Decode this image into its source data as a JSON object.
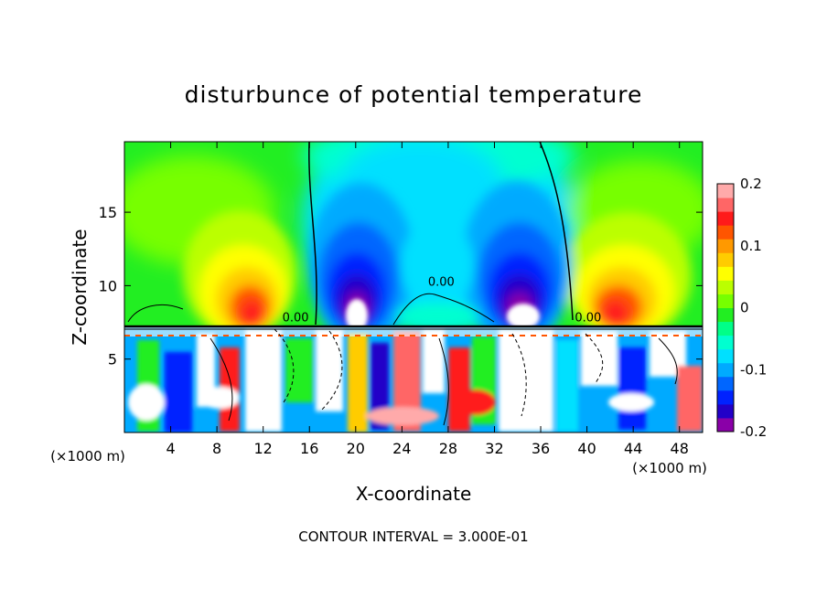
{
  "chart_data": {
    "type": "heatmap",
    "title": "disturbunce of potential temperature",
    "xlabel": "X-coordinate",
    "ylabel": "Z-coordinate",
    "x_unit_note": "(×1000 m)",
    "y_unit_note": "(×1000 m)",
    "footer": "CONTOUR INTERVAL = 3.000E-01",
    "xlim": [
      0,
      50
    ],
    "ylim": [
      0,
      19.8
    ],
    "x_ticks": [
      4,
      8,
      12,
      16,
      20,
      24,
      28,
      32,
      36,
      40,
      44,
      48
    ],
    "y_ticks": [
      5,
      10,
      15
    ],
    "colorbar": {
      "range": [
        -0.2,
        0.2
      ],
      "tick_labels": [
        "0.2",
        "0.1",
        "0",
        "-0.1",
        "-0.2"
      ],
      "tick_values": [
        0.2,
        0.1,
        0,
        -0.1,
        -0.2
      ],
      "colors": [
        "#8a00a8",
        "#2200c8",
        "#0022ff",
        "#0066ff",
        "#00aaff",
        "#00e0ff",
        "#00ffd0",
        "#00ff88",
        "#22ee22",
        "#77ff00",
        "#bbff00",
        "#ffff00",
        "#ffcc00",
        "#ff9900",
        "#ff5500",
        "#ff1a1a",
        "#ff6666",
        "#ffaaaa"
      ]
    },
    "contour_labels": [
      {
        "text": "0.00",
        "x": 27.4,
        "y": 10.0
      },
      {
        "text": "0.00",
        "x": 14.8,
        "y": 7.55
      },
      {
        "text": "0.00",
        "x": 40.1,
        "y": 7.55
      }
    ],
    "upper_layer_features": [
      {
        "x": 10.5,
        "z": 9.0,
        "value": 0.15
      },
      {
        "x": 20.5,
        "z": 10.0,
        "value": -0.19
      },
      {
        "x": 34.5,
        "z": 10.0,
        "value": -0.19
      },
      {
        "x": 43.5,
        "z": 9.0,
        "value": 0.15
      },
      {
        "x": 27.5,
        "z": 15.0,
        "value": -0.07
      }
    ]
  }
}
